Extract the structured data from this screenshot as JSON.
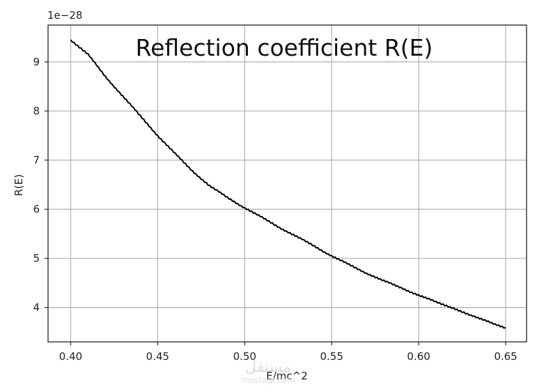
{
  "chart_data": {
    "type": "line",
    "title": "Reflection coefficient R(E)",
    "xlabel": "E/mc^2",
    "ylabel": "R(E)",
    "y_offset_text": "1e−28",
    "xlim": [
      0.387,
      0.662
    ],
    "ylim": [
      3.3,
      9.75
    ],
    "xticks": [
      0.4,
      0.45,
      0.5,
      0.55,
      0.6,
      0.65
    ],
    "xtick_labels": [
      "0.40",
      "0.45",
      "0.50",
      "0.55",
      "0.60",
      "0.65"
    ],
    "yticks": [
      4,
      5,
      6,
      7,
      8,
      9
    ],
    "ytick_labels": [
      "4",
      "5",
      "6",
      "7",
      "8",
      "9"
    ],
    "grid": true,
    "series": [
      {
        "color": "#000000",
        "x": [
          0.4,
          0.405,
          0.41,
          0.42,
          0.43,
          0.44,
          0.45,
          0.46,
          0.47,
          0.48,
          0.49,
          0.5,
          0.51,
          0.52,
          0.53,
          0.54,
          0.55,
          0.56,
          0.57,
          0.58,
          0.59,
          0.6,
          0.61,
          0.62,
          0.63,
          0.64,
          0.65
        ],
        "y": [
          9.45,
          9.3,
          9.15,
          8.7,
          8.3,
          7.9,
          7.5,
          7.13,
          6.78,
          6.47,
          6.24,
          6.03,
          5.83,
          5.63,
          5.44,
          5.25,
          5.05,
          4.87,
          4.7,
          4.54,
          4.4,
          4.25,
          4.11,
          3.99,
          3.83,
          3.72,
          3.58
        ]
      }
    ]
  },
  "watermark": {
    "text_arabic": "مستقل",
    "text_latin": "mostaql.com"
  }
}
